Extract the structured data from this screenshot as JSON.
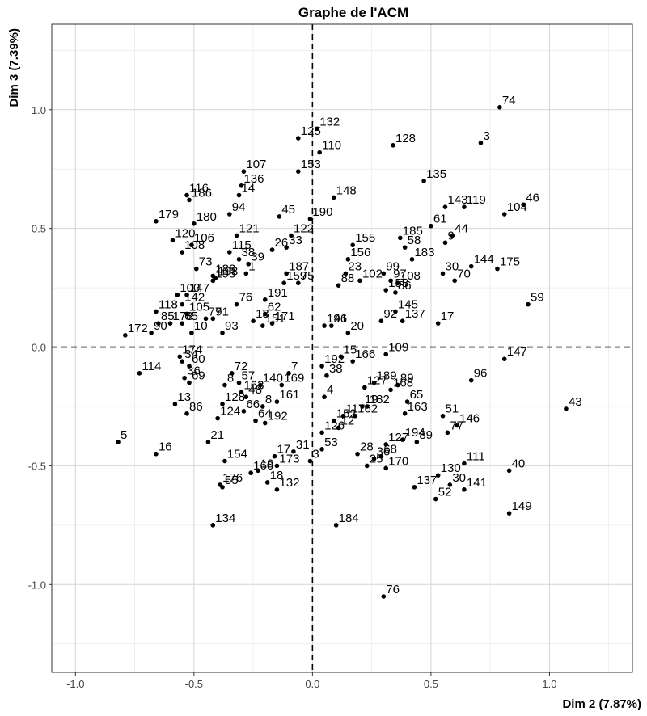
{
  "chart_data": {
    "type": "scatter",
    "title": "Graphe de l'ACM",
    "xlabel": "Dim 2 (7.87%)",
    "ylabel": "Dim 3 (7.39%)",
    "xlim": [
      -1.1,
      1.35
    ],
    "ylim": [
      -1.37,
      1.36
    ],
    "xticks": [
      -1.0,
      -0.5,
      0.0,
      0.5,
      1.0
    ],
    "xtick_labels": [
      "-1.0",
      "-0.5",
      "0.0",
      "0.5",
      "1.0"
    ],
    "yticks": [
      -1.0,
      -0.5,
      0.0,
      0.5,
      1.0
    ],
    "ytick_labels": [
      "-1.0",
      "-0.5",
      "0.0",
      "0.5",
      "1.0"
    ],
    "grid": true,
    "reference_lines": {
      "x": 0,
      "y": 0,
      "style": "dashed"
    },
    "colors": {
      "points": "#000000",
      "grid": "#d4d4d4",
      "background": "#ffffff"
    },
    "points": [
      {
        "label": "74",
        "x": 0.79,
        "y": 1.01
      },
      {
        "label": "3",
        "x": 0.71,
        "y": 0.86
      },
      {
        "label": "132",
        "x": 0.02,
        "y": 0.92
      },
      {
        "label": "125",
        "x": -0.06,
        "y": 0.88
      },
      {
        "label": "128",
        "x": 0.34,
        "y": 0.85
      },
      {
        "label": "110",
        "x": 0.03,
        "y": 0.82
      },
      {
        "label": "153",
        "x": -0.06,
        "y": 0.74
      },
      {
        "label": "107",
        "x": -0.29,
        "y": 0.74
      },
      {
        "label": "135",
        "x": 0.47,
        "y": 0.7
      },
      {
        "label": "136",
        "x": -0.3,
        "y": 0.68
      },
      {
        "label": "14",
        "x": -0.31,
        "y": 0.64
      },
      {
        "label": "116",
        "x": -0.53,
        "y": 0.64
      },
      {
        "label": "186",
        "x": -0.52,
        "y": 0.62
      },
      {
        "label": "148",
        "x": 0.09,
        "y": 0.63
      },
      {
        "label": "46",
        "x": 0.89,
        "y": 0.6
      },
      {
        "label": "143",
        "x": 0.56,
        "y": 0.59
      },
      {
        "label": "119",
        "x": 0.64,
        "y": 0.59
      },
      {
        "label": "104",
        "x": 0.81,
        "y": 0.56
      },
      {
        "label": "45",
        "x": -0.14,
        "y": 0.55
      },
      {
        "label": "190",
        "x": -0.01,
        "y": 0.54
      },
      {
        "label": "94",
        "x": -0.35,
        "y": 0.56
      },
      {
        "label": "179",
        "x": -0.66,
        "y": 0.53
      },
      {
        "label": "180",
        "x": -0.5,
        "y": 0.52
      },
      {
        "label": "61",
        "x": 0.5,
        "y": 0.51
      },
      {
        "label": "44",
        "x": 0.59,
        "y": 0.47
      },
      {
        "label": "122",
        "x": -0.09,
        "y": 0.47
      },
      {
        "label": "185",
        "x": 0.37,
        "y": 0.46
      },
      {
        "label": "121",
        "x": -0.32,
        "y": 0.47
      },
      {
        "label": "120",
        "x": -0.59,
        "y": 0.45
      },
      {
        "label": "9",
        "x": 0.56,
        "y": 0.44
      },
      {
        "label": "155",
        "x": 0.17,
        "y": 0.43
      },
      {
        "label": "58",
        "x": 0.39,
        "y": 0.42
      },
      {
        "label": "106",
        "x": -0.51,
        "y": 0.43
      },
      {
        "label": "26",
        "x": -0.17,
        "y": 0.41
      },
      {
        "label": "33",
        "x": -0.11,
        "y": 0.42
      },
      {
        "label": "115",
        "x": -0.35,
        "y": 0.4
      },
      {
        "label": "108",
        "x": -0.55,
        "y": 0.4
      },
      {
        "label": "156",
        "x": 0.15,
        "y": 0.37
      },
      {
        "label": "183",
        "x": 0.42,
        "y": 0.37
      },
      {
        "label": "38",
        "x": -0.31,
        "y": 0.37
      },
      {
        "label": "39",
        "x": -0.27,
        "y": 0.35
      },
      {
        "label": "144",
        "x": 0.67,
        "y": 0.34
      },
      {
        "label": "175",
        "x": 0.78,
        "y": 0.33
      },
      {
        "label": "30",
        "x": 0.55,
        "y": 0.31
      },
      {
        "label": "73",
        "x": -0.49,
        "y": 0.33
      },
      {
        "label": "1",
        "x": -0.28,
        "y": 0.31
      },
      {
        "label": "187",
        "x": -0.11,
        "y": 0.31
      },
      {
        "label": "99",
        "x": 0.3,
        "y": 0.31
      },
      {
        "label": "70",
        "x": 0.6,
        "y": 0.28
      },
      {
        "label": "23",
        "x": 0.14,
        "y": 0.31
      },
      {
        "label": "188",
        "x": -0.42,
        "y": 0.3
      },
      {
        "label": "102",
        "x": 0.2,
        "y": 0.28
      },
      {
        "label": "97",
        "x": 0.33,
        "y": 0.28
      },
      {
        "label": "198",
        "x": -0.41,
        "y": 0.29
      },
      {
        "label": "195",
        "x": -0.42,
        "y": 0.28
      },
      {
        "label": "159",
        "x": -0.12,
        "y": 0.27
      },
      {
        "label": "75",
        "x": -0.06,
        "y": 0.27
      },
      {
        "label": "108",
        "x": 0.36,
        "y": 0.27
      },
      {
        "label": "88",
        "x": 0.11,
        "y": 0.26
      },
      {
        "label": "158",
        "x": 0.31,
        "y": 0.24
      },
      {
        "label": "86",
        "x": 0.35,
        "y": 0.23
      },
      {
        "label": "59",
        "x": 0.91,
        "y": 0.18
      },
      {
        "label": "100",
        "x": -0.57,
        "y": 0.22
      },
      {
        "label": "147",
        "x": -0.53,
        "y": 0.22
      },
      {
        "label": "191",
        "x": -0.2,
        "y": 0.2
      },
      {
        "label": "142",
        "x": -0.55,
        "y": 0.18
      },
      {
        "label": "118",
        "x": -0.66,
        "y": 0.15
      },
      {
        "label": "145",
        "x": 0.35,
        "y": 0.15
      },
      {
        "label": "62",
        "x": -0.2,
        "y": 0.14
      },
      {
        "label": "76",
        "x": -0.32,
        "y": 0.18
      },
      {
        "label": "105",
        "x": -0.53,
        "y": 0.14
      },
      {
        "label": "77",
        "x": -0.45,
        "y": 0.12
      },
      {
        "label": "91",
        "x": -0.42,
        "y": 0.12
      },
      {
        "label": "17",
        "x": 0.53,
        "y": 0.1
      },
      {
        "label": "92",
        "x": 0.29,
        "y": 0.11
      },
      {
        "label": "137",
        "x": 0.38,
        "y": 0.11
      },
      {
        "label": "13",
        "x": -0.25,
        "y": 0.11
      },
      {
        "label": "171",
        "x": -0.17,
        "y": 0.1
      },
      {
        "label": "85",
        "x": -0.65,
        "y": 0.1
      },
      {
        "label": "178",
        "x": -0.6,
        "y": 0.1
      },
      {
        "label": "65",
        "x": -0.55,
        "y": 0.1
      },
      {
        "label": "151",
        "x": -0.21,
        "y": 0.09
      },
      {
        "label": "196",
        "x": 0.05,
        "y": 0.09
      },
      {
        "label": "41",
        "x": 0.08,
        "y": 0.09
      },
      {
        "label": "172",
        "x": -0.79,
        "y": 0.05
      },
      {
        "label": "90",
        "x": -0.68,
        "y": 0.06
      },
      {
        "label": "10",
        "x": -0.51,
        "y": 0.06
      },
      {
        "label": "20",
        "x": 0.15,
        "y": 0.06
      },
      {
        "label": "93",
        "x": -0.38,
        "y": 0.06
      },
      {
        "label": "147",
        "x": 0.81,
        "y": -0.05
      },
      {
        "label": "109",
        "x": 0.31,
        "y": -0.03
      },
      {
        "label": "174",
        "x": -0.56,
        "y": -0.04
      },
      {
        "label": "34",
        "x": -0.55,
        "y": -0.06
      },
      {
        "label": "166",
        "x": 0.17,
        "y": -0.06
      },
      {
        "label": "15",
        "x": 0.12,
        "y": -0.04
      },
      {
        "label": "60",
        "x": -0.52,
        "y": -0.08
      },
      {
        "label": "192",
        "x": 0.04,
        "y": -0.08
      },
      {
        "label": "114",
        "x": -0.73,
        "y": -0.11
      },
      {
        "label": "72",
        "x": -0.34,
        "y": -0.11
      },
      {
        "label": "36",
        "x": -0.54,
        "y": -0.13
      },
      {
        "label": "38",
        "x": 0.06,
        "y": -0.12
      },
      {
        "label": "7",
        "x": -0.1,
        "y": -0.11
      },
      {
        "label": "96",
        "x": 0.67,
        "y": -0.14
      },
      {
        "label": "69",
        "x": -0.52,
        "y": -0.15
      },
      {
        "label": "8",
        "x": -0.37,
        "y": -0.16
      },
      {
        "label": "189",
        "x": 0.26,
        "y": -0.15
      },
      {
        "label": "89",
        "x": 0.36,
        "y": -0.16
      },
      {
        "label": "57",
        "x": -0.31,
        "y": -0.15
      },
      {
        "label": "140",
        "x": -0.22,
        "y": -0.16
      },
      {
        "label": "169",
        "x": -0.13,
        "y": -0.16
      },
      {
        "label": "127",
        "x": 0.22,
        "y": -0.17
      },
      {
        "label": "168",
        "x": 0.33,
        "y": -0.18
      },
      {
        "label": "163",
        "x": -0.3,
        "y": -0.19
      },
      {
        "label": "48",
        "x": -0.28,
        "y": -0.21
      },
      {
        "label": "4",
        "x": 0.05,
        "y": -0.21
      },
      {
        "label": "161",
        "x": -0.15,
        "y": -0.23
      },
      {
        "label": "13",
        "x": -0.58,
        "y": -0.24
      },
      {
        "label": "128",
        "x": -0.38,
        "y": -0.24
      },
      {
        "label": "65",
        "x": 0.4,
        "y": -0.23
      },
      {
        "label": "8",
        "x": -0.21,
        "y": -0.25
      },
      {
        "label": "66",
        "x": -0.29,
        "y": -0.27
      },
      {
        "label": "19",
        "x": 0.21,
        "y": -0.25
      },
      {
        "label": "182",
        "x": 0.23,
        "y": -0.25
      },
      {
        "label": "163",
        "x": 0.39,
        "y": -0.28
      },
      {
        "label": "86",
        "x": -0.53,
        "y": -0.28
      },
      {
        "label": "117",
        "x": 0.13,
        "y": -0.29
      },
      {
        "label": "162",
        "x": 0.18,
        "y": -0.29
      },
      {
        "label": "124",
        "x": -0.4,
        "y": -0.3
      },
      {
        "label": "64",
        "x": -0.24,
        "y": -0.31
      },
      {
        "label": "152",
        "x": 0.09,
        "y": -0.31
      },
      {
        "label": "192",
        "x": -0.2,
        "y": -0.32
      },
      {
        "label": "51",
        "x": 0.55,
        "y": -0.29
      },
      {
        "label": "43",
        "x": 1.07,
        "y": -0.26
      },
      {
        "label": "146",
        "x": 0.61,
        "y": -0.33
      },
      {
        "label": "12",
        "x": 0.11,
        "y": -0.34
      },
      {
        "label": "77",
        "x": 0.57,
        "y": -0.36
      },
      {
        "label": "126",
        "x": 0.04,
        "y": -0.36
      },
      {
        "label": "194",
        "x": 0.38,
        "y": -0.39
      },
      {
        "label": "89",
        "x": 0.44,
        "y": -0.4
      },
      {
        "label": "127",
        "x": 0.31,
        "y": -0.41
      },
      {
        "label": "21",
        "x": -0.44,
        "y": -0.4
      },
      {
        "label": "5",
        "x": -0.82,
        "y": -0.4
      },
      {
        "label": "53",
        "x": 0.04,
        "y": -0.43
      },
      {
        "label": "31",
        "x": -0.08,
        "y": -0.44
      },
      {
        "label": "28",
        "x": 0.19,
        "y": -0.45
      },
      {
        "label": "16",
        "x": -0.66,
        "y": -0.45
      },
      {
        "label": "68",
        "x": 0.29,
        "y": -0.46
      },
      {
        "label": "36",
        "x": 0.26,
        "y": -0.47
      },
      {
        "label": "3",
        "x": -0.01,
        "y": -0.48
      },
      {
        "label": "173",
        "x": -0.15,
        "y": -0.5
      },
      {
        "label": "17",
        "x": -0.16,
        "y": -0.46
      },
      {
        "label": "19",
        "x": -0.23,
        "y": -0.52
      },
      {
        "label": "170",
        "x": 0.31,
        "y": -0.51
      },
      {
        "label": "25",
        "x": 0.23,
        "y": -0.5
      },
      {
        "label": "111",
        "x": 0.64,
        "y": -0.49
      },
      {
        "label": "154",
        "x": -0.37,
        "y": -0.48
      },
      {
        "label": "160",
        "x": -0.26,
        "y": -0.53
      },
      {
        "label": "40",
        "x": 0.83,
        "y": -0.52
      },
      {
        "label": "130",
        "x": 0.53,
        "y": -0.54
      },
      {
        "label": "18",
        "x": -0.19,
        "y": -0.57
      },
      {
        "label": "176",
        "x": -0.39,
        "y": -0.58
      },
      {
        "label": "55",
        "x": -0.38,
        "y": -0.59
      },
      {
        "label": "30",
        "x": 0.58,
        "y": -0.58
      },
      {
        "label": "137",
        "x": 0.43,
        "y": -0.59
      },
      {
        "label": "141",
        "x": 0.64,
        "y": -0.6
      },
      {
        "label": "132",
        "x": -0.15,
        "y": -0.6
      },
      {
        "label": "52",
        "x": 0.52,
        "y": -0.64
      },
      {
        "label": "149",
        "x": 0.83,
        "y": -0.7
      },
      {
        "label": "184",
        "x": 0.1,
        "y": -0.75
      },
      {
        "label": "134",
        "x": -0.42,
        "y": -0.75
      },
      {
        "label": "76",
        "x": 0.3,
        "y": -1.05
      }
    ]
  }
}
